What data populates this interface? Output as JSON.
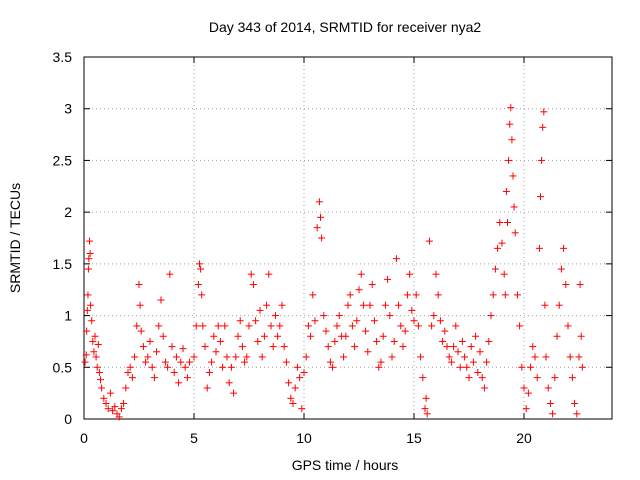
{
  "chart_data": {
    "type": "scatter",
    "title": "Day 343 of 2014, SRMTID for receiver nya2",
    "xlabel": "GPS time / hours",
    "ylabel": "SRMTID / TECUs",
    "xlim": [
      0,
      24
    ],
    "ylim": [
      0,
      3.5
    ],
    "x_ticks": [
      0,
      5,
      10,
      15,
      20
    ],
    "x_tick_labels": [
      "0",
      "5",
      "10",
      "15",
      "20"
    ],
    "y_ticks": [
      0,
      0.5,
      1,
      1.5,
      2,
      2.5,
      3,
      3.5
    ],
    "y_tick_labels": [
      "0",
      "0.5",
      "1",
      "1.5",
      "2",
      "2.5",
      "3",
      "3.5"
    ],
    "grid": true,
    "marker": "+",
    "color": "#ff0000",
    "series": [
      {
        "name": "nya2",
        "points": [
          [
            0.05,
            0.55
          ],
          [
            0.1,
            0.62
          ],
          [
            0.12,
            0.85
          ],
          [
            0.15,
            1.05
          ],
          [
            0.18,
            1.2
          ],
          [
            0.2,
            1.45
          ],
          [
            0.22,
            1.55
          ],
          [
            0.25,
            1.72
          ],
          [
            0.28,
            1.6
          ],
          [
            0.3,
            1.1
          ],
          [
            0.35,
            0.95
          ],
          [
            0.4,
            0.75
          ],
          [
            0.45,
            0.65
          ],
          [
            0.5,
            0.8
          ],
          [
            0.55,
            0.6
          ],
          [
            0.6,
            0.5
          ],
          [
            0.65,
            0.72
          ],
          [
            0.7,
            0.45
          ],
          [
            0.75,
            0.38
          ],
          [
            0.8,
            0.3
          ],
          [
            0.9,
            0.2
          ],
          [
            1.0,
            0.15
          ],
          [
            1.1,
            0.1
          ],
          [
            1.2,
            0.25
          ],
          [
            1.3,
            0.08
          ],
          [
            1.4,
            0.12
          ],
          [
            1.5,
            0.05
          ],
          [
            1.6,
            0.02
          ],
          [
            1.7,
            0.1
          ],
          [
            1.8,
            0.15
          ],
          [
            1.9,
            0.3
          ],
          [
            2.0,
            0.45
          ],
          [
            2.1,
            0.5
          ],
          [
            2.2,
            0.4
          ],
          [
            2.3,
            0.6
          ],
          [
            2.4,
            0.9
          ],
          [
            2.5,
            1.3
          ],
          [
            2.55,
            1.1
          ],
          [
            2.6,
            0.85
          ],
          [
            2.7,
            0.7
          ],
          [
            2.8,
            0.55
          ],
          [
            2.9,
            0.6
          ],
          [
            3.0,
            0.75
          ],
          [
            3.1,
            0.5
          ],
          [
            3.2,
            0.4
          ],
          [
            3.3,
            0.65
          ],
          [
            3.4,
            0.9
          ],
          [
            3.5,
            1.15
          ],
          [
            3.6,
            0.8
          ],
          [
            3.7,
            0.55
          ],
          [
            3.8,
            0.5
          ],
          [
            3.9,
            1.4
          ],
          [
            4.0,
            0.7
          ],
          [
            4.1,
            0.45
          ],
          [
            4.2,
            0.6
          ],
          [
            4.3,
            0.35
          ],
          [
            4.4,
            0.55
          ],
          [
            4.5,
            0.68
          ],
          [
            4.6,
            0.5
          ],
          [
            4.7,
            0.4
          ],
          [
            4.8,
            0.55
          ],
          [
            5.0,
            0.6
          ],
          [
            5.1,
            0.9
          ],
          [
            5.2,
            1.3
          ],
          [
            5.25,
            1.5
          ],
          [
            5.3,
            1.45
          ],
          [
            5.35,
            1.2
          ],
          [
            5.4,
            0.9
          ],
          [
            5.5,
            0.7
          ],
          [
            5.6,
            0.3
          ],
          [
            5.7,
            0.45
          ],
          [
            5.8,
            0.55
          ],
          [
            5.9,
            0.8
          ],
          [
            6.0,
            0.65
          ],
          [
            6.1,
            0.9
          ],
          [
            6.2,
            0.75
          ],
          [
            6.3,
            0.5
          ],
          [
            6.4,
            0.9
          ],
          [
            6.5,
            0.6
          ],
          [
            6.6,
            0.35
          ],
          [
            6.7,
            0.5
          ],
          [
            6.8,
            0.25
          ],
          [
            6.9,
            0.6
          ],
          [
            7.0,
            0.8
          ],
          [
            7.1,
            0.95
          ],
          [
            7.2,
            0.7
          ],
          [
            7.3,
            0.55
          ],
          [
            7.4,
            0.6
          ],
          [
            7.5,
            0.9
          ],
          [
            7.6,
            1.4
          ],
          [
            7.7,
            1.3
          ],
          [
            7.8,
            0.95
          ],
          [
            7.9,
            0.75
          ],
          [
            8.0,
            1.05
          ],
          [
            8.1,
            0.6
          ],
          [
            8.2,
            0.8
          ],
          [
            8.3,
            1.1
          ],
          [
            8.4,
            1.4
          ],
          [
            8.5,
            0.9
          ],
          [
            8.6,
            0.7
          ],
          [
            8.7,
            1.0
          ],
          [
            8.8,
            0.8
          ],
          [
            8.9,
            0.9
          ],
          [
            9.0,
            1.1
          ],
          [
            9.1,
            0.7
          ],
          [
            9.2,
            0.55
          ],
          [
            9.3,
            0.35
          ],
          [
            9.4,
            0.2
          ],
          [
            9.5,
            0.15
          ],
          [
            9.6,
            0.3
          ],
          [
            9.7,
            0.5
          ],
          [
            9.8,
            0.4
          ],
          [
            9.9,
            0.1
          ],
          [
            10.0,
            0.45
          ],
          [
            10.1,
            0.6
          ],
          [
            10.2,
            0.9
          ],
          [
            10.3,
            0.8
          ],
          [
            10.4,
            1.2
          ],
          [
            10.5,
            0.95
          ],
          [
            10.6,
            1.85
          ],
          [
            10.7,
            2.1
          ],
          [
            10.75,
            1.95
          ],
          [
            10.8,
            1.75
          ],
          [
            10.9,
            1.0
          ],
          [
            11.0,
            0.85
          ],
          [
            11.1,
            0.7
          ],
          [
            11.2,
            0.55
          ],
          [
            11.3,
            0.5
          ],
          [
            11.4,
            0.75
          ],
          [
            11.5,
            0.9
          ],
          [
            11.6,
            1.0
          ],
          [
            11.7,
            0.8
          ],
          [
            11.8,
            0.6
          ],
          [
            11.9,
            0.8
          ],
          [
            12.0,
            1.1
          ],
          [
            12.1,
            1.2
          ],
          [
            12.2,
            0.9
          ],
          [
            12.3,
            0.7
          ],
          [
            12.4,
            0.95
          ],
          [
            12.5,
            1.25
          ],
          [
            12.6,
            1.4
          ],
          [
            12.7,
            1.1
          ],
          [
            12.8,
            0.85
          ],
          [
            12.9,
            0.65
          ],
          [
            13.0,
            1.1
          ],
          [
            13.1,
            1.3
          ],
          [
            13.2,
            0.95
          ],
          [
            13.3,
            0.75
          ],
          [
            13.4,
            0.5
          ],
          [
            13.5,
            0.55
          ],
          [
            13.6,
            0.8
          ],
          [
            13.7,
            1.1
          ],
          [
            13.8,
            1.35
          ],
          [
            13.9,
            1.0
          ],
          [
            14.0,
            0.6
          ],
          [
            14.1,
            0.75
          ],
          [
            14.2,
            1.55
          ],
          [
            14.3,
            1.1
          ],
          [
            14.4,
            0.9
          ],
          [
            14.5,
            0.7
          ],
          [
            14.6,
            0.85
          ],
          [
            14.7,
            1.2
          ],
          [
            14.8,
            1.4
          ],
          [
            14.9,
            1.05
          ],
          [
            15.0,
            0.95
          ],
          [
            15.1,
            1.2
          ],
          [
            15.2,
            0.9
          ],
          [
            15.3,
            0.6
          ],
          [
            15.4,
            0.4
          ],
          [
            15.5,
            0.1
          ],
          [
            15.55,
            0.2
          ],
          [
            15.6,
            0.05
          ],
          [
            15.7,
            1.72
          ],
          [
            15.8,
            0.9
          ],
          [
            15.9,
            1.0
          ],
          [
            16.0,
            1.4
          ],
          [
            16.1,
            1.2
          ],
          [
            16.2,
            0.95
          ],
          [
            16.3,
            0.75
          ],
          [
            16.4,
            0.85
          ],
          [
            16.5,
            0.7
          ],
          [
            16.6,
            0.6
          ],
          [
            16.7,
            0.55
          ],
          [
            16.8,
            0.7
          ],
          [
            16.9,
            0.9
          ],
          [
            17.0,
            0.65
          ],
          [
            17.1,
            0.5
          ],
          [
            17.2,
            0.75
          ],
          [
            17.3,
            0.6
          ],
          [
            17.4,
            0.5
          ],
          [
            17.5,
            0.4
          ],
          [
            17.6,
            0.7
          ],
          [
            17.7,
            0.55
          ],
          [
            17.8,
            0.8
          ],
          [
            17.9,
            0.45
          ],
          [
            18.0,
            0.65
          ],
          [
            18.1,
            0.4
          ],
          [
            18.2,
            0.3
          ],
          [
            18.3,
            0.55
          ],
          [
            18.4,
            0.75
          ],
          [
            18.5,
            1.0
          ],
          [
            18.6,
            1.2
          ],
          [
            18.7,
            1.45
          ],
          [
            18.8,
            1.65
          ],
          [
            18.9,
            1.9
          ],
          [
            19.0,
            1.7
          ],
          [
            19.1,
            1.4
          ],
          [
            19.15,
            1.2
          ],
          [
            19.2,
            2.2
          ],
          [
            19.25,
            1.9
          ],
          [
            19.3,
            2.5
          ],
          [
            19.35,
            2.85
          ],
          [
            19.4,
            3.01
          ],
          [
            19.45,
            2.7
          ],
          [
            19.5,
            2.35
          ],
          [
            19.55,
            2.05
          ],
          [
            19.6,
            1.8
          ],
          [
            19.7,
            1.2
          ],
          [
            19.8,
            0.9
          ],
          [
            19.9,
            0.5
          ],
          [
            20.0,
            0.3
          ],
          [
            20.1,
            0.1
          ],
          [
            20.2,
            0.25
          ],
          [
            20.3,
            0.5
          ],
          [
            20.4,
            0.7
          ],
          [
            20.5,
            0.6
          ],
          [
            20.6,
            0.4
          ],
          [
            20.7,
            1.65
          ],
          [
            20.75,
            2.15
          ],
          [
            20.8,
            2.5
          ],
          [
            20.85,
            2.82
          ],
          [
            20.9,
            2.97
          ],
          [
            20.95,
            1.1
          ],
          [
            21.0,
            0.6
          ],
          [
            21.1,
            0.3
          ],
          [
            21.2,
            0.15
          ],
          [
            21.3,
            0.05
          ],
          [
            21.4,
            0.4
          ],
          [
            21.5,
            0.8
          ],
          [
            21.6,
            1.1
          ],
          [
            21.7,
            1.45
          ],
          [
            21.8,
            1.65
          ],
          [
            21.9,
            1.3
          ],
          [
            22.0,
            0.9
          ],
          [
            22.1,
            0.6
          ],
          [
            22.2,
            0.4
          ],
          [
            22.3,
            0.15
          ],
          [
            22.4,
            0.05
          ],
          [
            22.5,
            0.6
          ],
          [
            22.55,
            1.3
          ],
          [
            22.6,
            0.8
          ],
          [
            22.65,
            0.5
          ]
        ]
      }
    ]
  }
}
